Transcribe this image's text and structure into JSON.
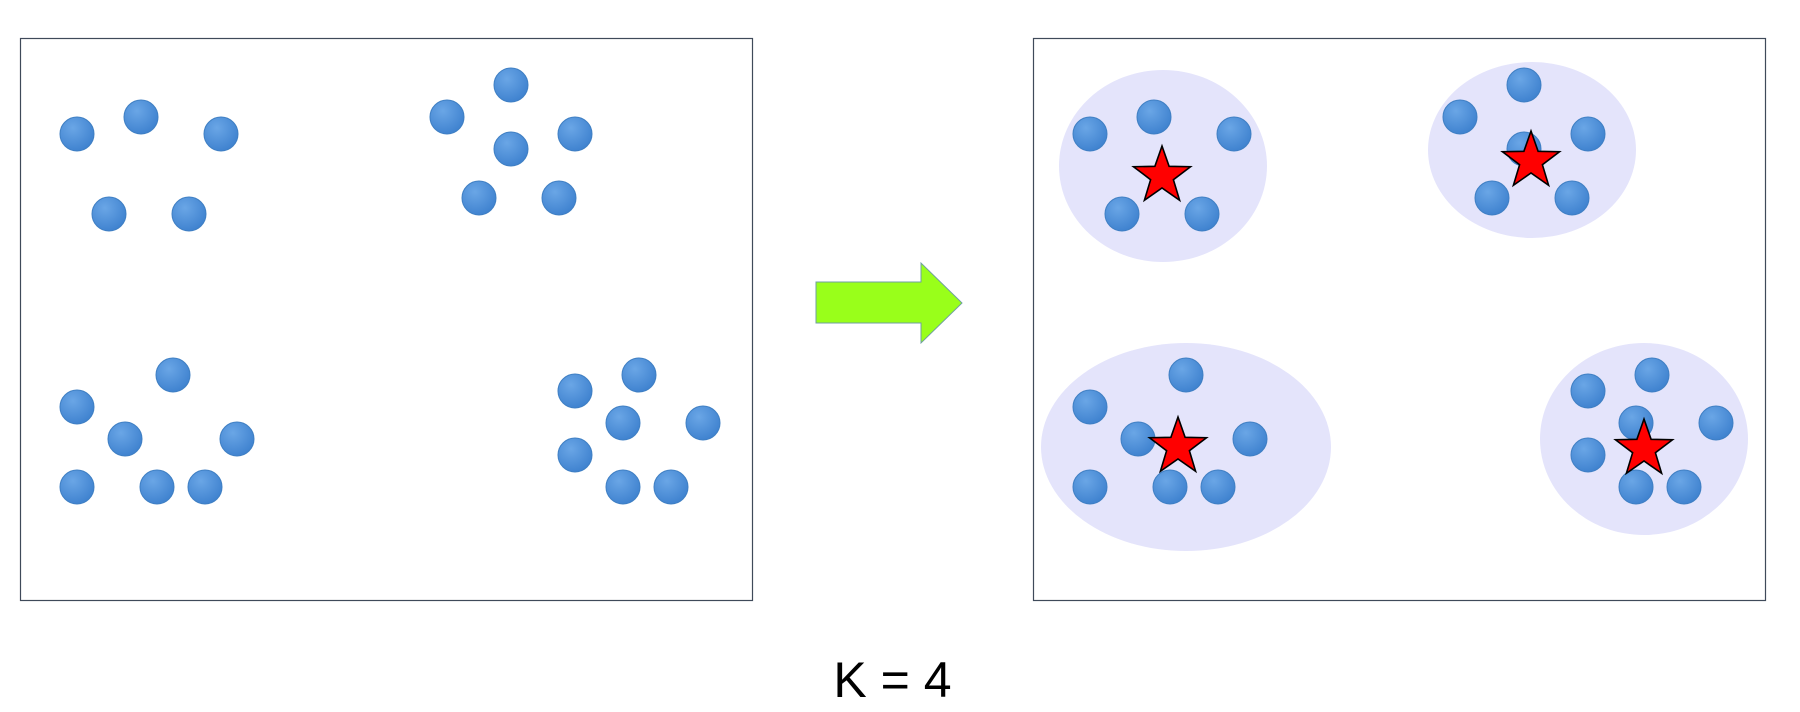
{
  "caption": "K = 4",
  "colors": {
    "point": "#4a8fd6",
    "point_edge": "#3f7fc3",
    "cluster_fill": "#e4e4fb",
    "star": "#ff0000",
    "arrow": "#99ff1a",
    "frame": "#3f4a5a"
  },
  "icons": {
    "arrow": "right-arrow-icon",
    "centroid": "star-icon"
  },
  "k": 4
}
